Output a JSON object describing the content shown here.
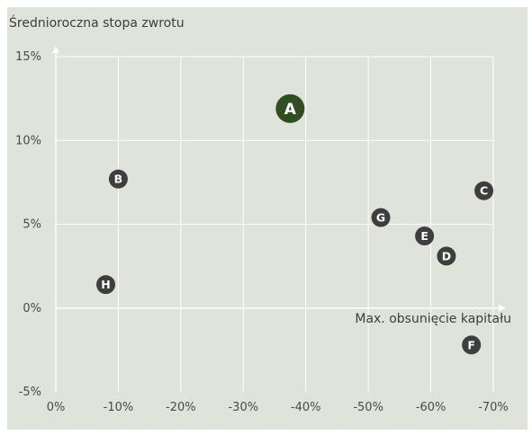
{
  "chart_data": {
    "type": "scatter",
    "title": "",
    "ylabel": "Średnioroczna stopa zwrotu",
    "xlabel": "Max. obsunięcie kapitału",
    "x_ticks": [
      "0%",
      "-10%",
      "-20%",
      "-30%",
      "-40%",
      "-50%",
      "-60%",
      "-70%"
    ],
    "x_tick_values": [
      0,
      -10,
      -20,
      -30,
      -40,
      -50,
      -60,
      -70
    ],
    "y_ticks": [
      "-5%",
      "0%",
      "5%",
      "10%",
      "15%"
    ],
    "y_tick_values": [
      -5,
      0,
      5,
      10,
      15
    ],
    "xlim": [
      0,
      -70
    ],
    "ylim": [
      -5,
      15
    ],
    "grid": true,
    "points": [
      {
        "label": "A",
        "x": -37.5,
        "y": 11.9,
        "highlight": true
      },
      {
        "label": "B",
        "x": -10.0,
        "y": 7.7
      },
      {
        "label": "C",
        "x": -68.5,
        "y": 7.0
      },
      {
        "label": "D",
        "x": -62.5,
        "y": 3.1
      },
      {
        "label": "E",
        "x": -59.0,
        "y": 4.3
      },
      {
        "label": "F",
        "x": -66.5,
        "y": -2.2
      },
      {
        "label": "G",
        "x": -52.0,
        "y": 5.4
      },
      {
        "label": "H",
        "x": -8.0,
        "y": 1.4
      }
    ],
    "colors": {
      "background": "#dfe3d9",
      "grid": "#ffffff",
      "point": "#3e3e3e",
      "highlight": "#2f4f22",
      "point_text": "#ffffff"
    }
  }
}
